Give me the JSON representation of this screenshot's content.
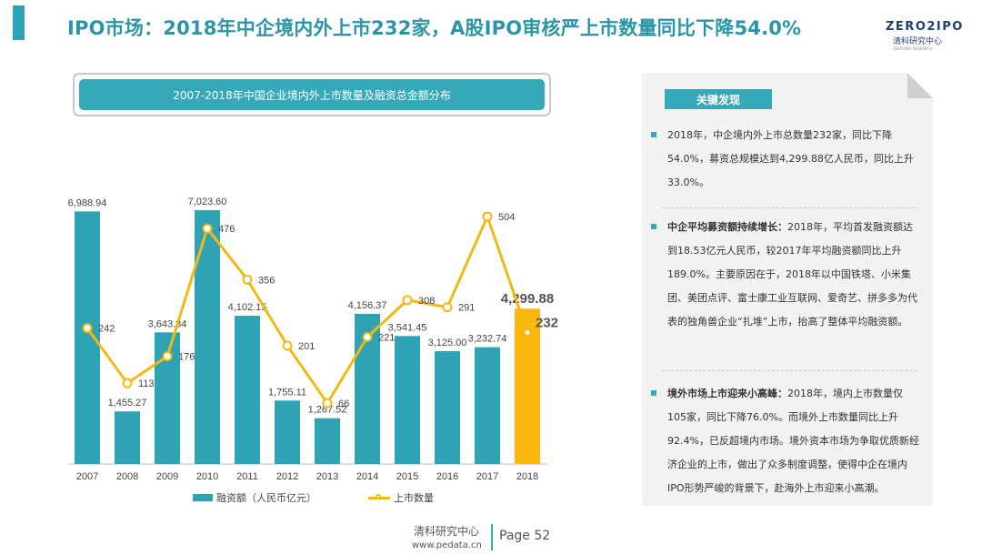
{
  "header": {
    "title": "IPO市场：2018年中企境内外上市232家，A股IPO审核严上市数量同比下降54.0%",
    "logo_top": "ZERO2IPO",
    "logo_sub": "清科研究中心",
    "logo_tagline": "ZERO2IPO RESEARCH"
  },
  "chart_title": "2007-2018年中国企业境内外上市数量及融资总金额分布",
  "chart_data": {
    "type": "bar",
    "categories": [
      "2007",
      "2008",
      "2009",
      "2010",
      "2011",
      "2012",
      "2013",
      "2014",
      "2015",
      "2016",
      "2017",
      "2018"
    ],
    "series": [
      {
        "name": "融资额（人民币亿元）",
        "type": "bar",
        "values": [
          6988.94,
          1455.27,
          3643.34,
          7023.6,
          4102.15,
          1755.11,
          1267.52,
          4156.37,
          3541.45,
          3125.0,
          3232.74,
          4299.88
        ],
        "labels": [
          "6,988.94",
          "1,455.27",
          "3,643.34",
          "7,023.60",
          "4,102.15",
          "1,755.11",
          "1,267.52",
          "4,156.37",
          "3,541.45",
          "3,125.00",
          "3,232.74",
          "4,299.88"
        ]
      },
      {
        "name": "上市数量",
        "type": "line",
        "values": [
          242,
          113,
          176,
          476,
          356,
          201,
          66,
          221,
          308,
          291,
          504,
          232
        ],
        "labels": [
          "242",
          "113",
          "176",
          "476",
          "356",
          "201",
          "66",
          "221",
          "308",
          "291",
          "504",
          "232"
        ]
      }
    ],
    "highlight_index": 11,
    "colors": {
      "bar": "#2ea3b3",
      "highlight_bar": "#f8b810",
      "line": "#f4b815",
      "highlight_label": "#555555"
    }
  },
  "legend": {
    "bar_label": "融资额（人民币亿元）",
    "line_label": "上市数量"
  },
  "panel": {
    "header": "关键发现",
    "bullets": [
      {
        "bold": "",
        "text": "2018年，中企境内外上市总数量232家，同比下降54.0%，募资总规模达到4,299.88亿人民币，同比上升33.0%。"
      },
      {
        "bold": "中企平均募资额持续增长：",
        "text": "2018年，平均首发融资额达到18.53亿元人民币，较2017年平均融资额同比上升189.0%。主要原因在于，2018年以中国铁塔、小米集团、美团点评、富士康工业互联网、爱奇艺、拼多多为代表的独角兽企业“扎堆”上市，抬高了整体平均融资额。"
      },
      {
        "bold": "境外市场上市迎来小高峰：",
        "text": "2018年，境内上市数量仅105家，同比下降76.0%。而境外上市数量同比上升92.4%，已反超境内市场。境外资本市场为争取优质新经济企业的上市，做出了众多制度调整，使得中企在境内IPO形势严峻的背景下，赴海外上市迎来小高潮。"
      }
    ]
  },
  "footer": {
    "org": "清科研究中心",
    "url": "www.pedata.cn",
    "page": "Page 52"
  }
}
